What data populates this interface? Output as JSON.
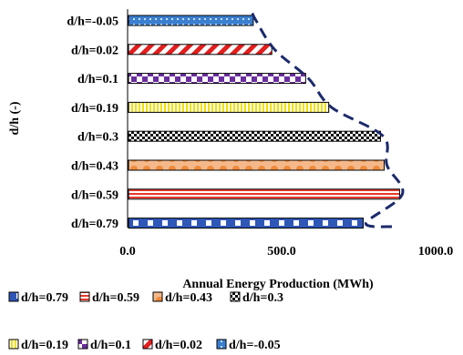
{
  "chart_data": {
    "type": "bar",
    "orientation": "horizontal",
    "xlabel": "Annual Energy Production (MWh)",
    "ylabel": "d/h (-)",
    "xlim": [
      0,
      1000
    ],
    "xticks": [
      "0.0",
      "500.0",
      "1000.0"
    ],
    "grid": false,
    "legend_position": "bottom",
    "series": [
      {
        "name": "d/h=0.79",
        "label": "d/h=0.79",
        "value": 762,
        "pattern": "blue-squares",
        "color": "#2f57b8"
      },
      {
        "name": "d/h=0.59",
        "label": "d/h=0.59",
        "value": 880,
        "pattern": "red-stripes",
        "color": "#e8382a"
      },
      {
        "name": "d/h=0.43",
        "label": "d/h=0.43",
        "value": 830,
        "pattern": "orange-circles",
        "color": "#ef8a3a"
      },
      {
        "name": "d/h=0.3",
        "label": "d/h=0.3",
        "value": 818,
        "pattern": "black-checker",
        "color": "#111111"
      },
      {
        "name": "d/h=0.19",
        "label": "d/h=0.19",
        "value": 650,
        "pattern": "yellow-stripes",
        "color": "#f0e000"
      },
      {
        "name": "d/h=0.1",
        "label": "d/h=0.1",
        "value": 575,
        "pattern": "purple-checker",
        "color": "#6a2da0"
      },
      {
        "name": "d/h=0.02",
        "label": "d/h=0.02",
        "value": 465,
        "pattern": "red-diagonal",
        "color": "#e11e1e"
      },
      {
        "name": "d/h=-0.05",
        "label": "d/h=-0.05",
        "value": 405,
        "pattern": "blue-dots",
        "color": "#3a7fd0"
      }
    ],
    "category_order_top_to_bottom": [
      "d/h=-0.05",
      "d/h=0.02",
      "d/h=0.1",
      "d/h=0.19",
      "d/h=0.3",
      "d/h=0.43",
      "d/h=0.59",
      "d/h=0.79"
    ],
    "legend_rows": [
      [
        "d/h=0.79",
        "d/h=0.59",
        "d/h=0.43",
        "d/h=0.3"
      ],
      [
        "d/h=0.19",
        "d/h=0.1",
        "d/h=0.02",
        "d/h=-0.05"
      ]
    ],
    "envelope_curve": {
      "style": "dashed",
      "color": "#1b2a6b"
    }
  }
}
